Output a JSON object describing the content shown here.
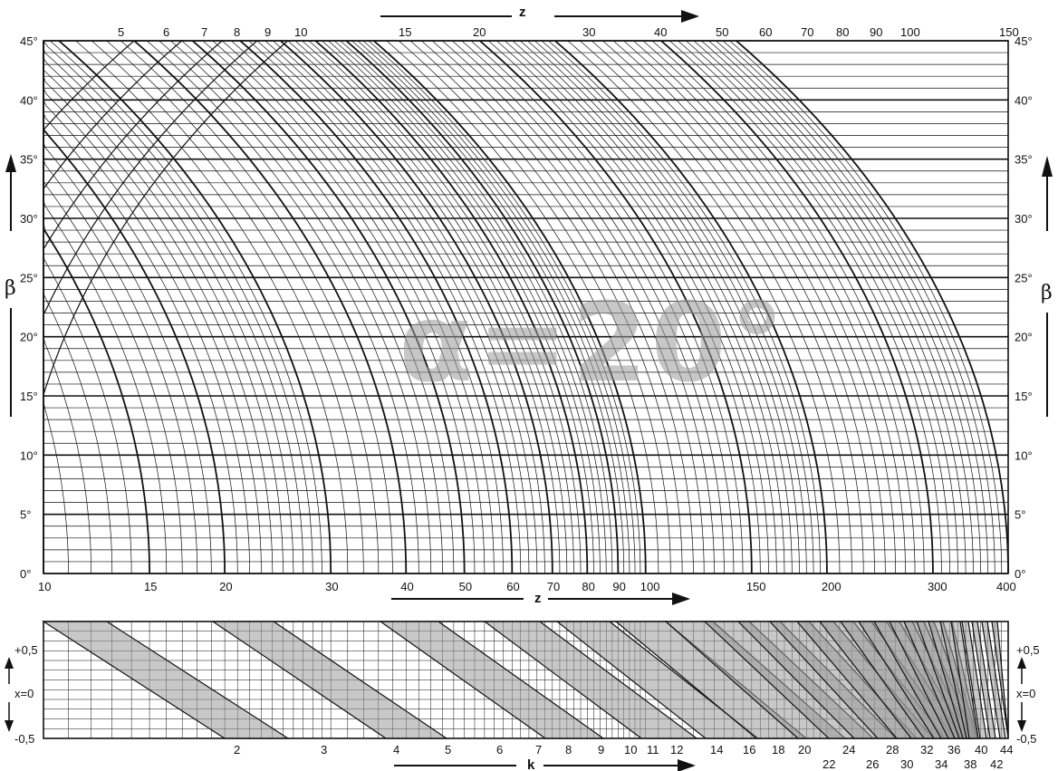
{
  "title_stamp": "α=20°",
  "top_axis": {
    "label": "z",
    "values": [
      "5",
      "6",
      "7",
      "8",
      "9",
      "10",
      "15",
      "20",
      "30",
      "40",
      "50",
      "60",
      "70",
      "80",
      "90",
      "100",
      "150"
    ]
  },
  "mid_axis": {
    "label": "z",
    "values": [
      "10",
      "15",
      "20",
      "30",
      "40",
      "50",
      "60",
      "70",
      "80",
      "90",
      "100",
      "150",
      "200",
      "300",
      "400"
    ]
  },
  "beta_axis": {
    "label": "β",
    "ticks": [
      "0°",
      "5°",
      "10°",
      "15°",
      "20°",
      "25°",
      "30°",
      "35°",
      "40°",
      "45°"
    ]
  },
  "x_axis_small": {
    "center_label": "x=0",
    "ticks": [
      "+0,5",
      "x=0",
      "-0,5"
    ]
  },
  "k_axis": {
    "label": "k",
    "upper": [
      "2",
      "3",
      "4",
      "5",
      "6",
      "7",
      "8",
      "9",
      "10",
      "11",
      "12",
      "14",
      "16",
      "18",
      "20",
      "24",
      "28",
      "32",
      "36",
      "40",
      "44"
    ],
    "lower": [
      "22",
      "26",
      "30",
      "34",
      "38",
      "42"
    ]
  },
  "chart_data": {
    "type": "nomogram",
    "title": "α=20°",
    "ylabel": "β",
    "ylim": [
      0,
      45
    ],
    "xlabel": "z",
    "x_scale": "log",
    "xlim": [
      10,
      400
    ],
    "bottom_xlabel": "k",
    "bottom_ylabel": "x",
    "bottom_ylim": [
      -0.5,
      0.5
    ],
    "grid": true
  }
}
